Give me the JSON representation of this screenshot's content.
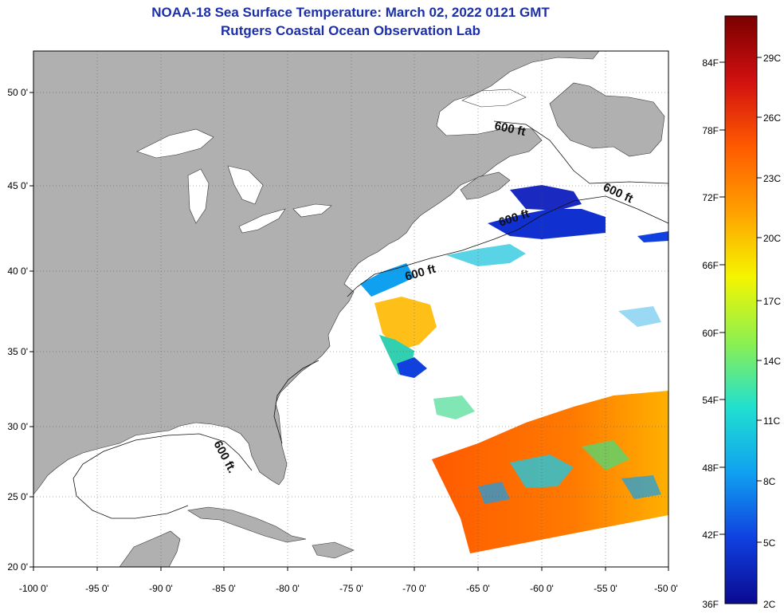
{
  "title": "NOAA-18 Sea Surface Temperature:  March 02, 2022 0121 GMT",
  "subtitle": "Rutgers Coastal Ocean Observation Lab",
  "map": {
    "lon_range": [
      -100,
      -50
    ],
    "lat_range": [
      20,
      52.5
    ],
    "lon_ticks": [
      "-100 0'",
      "-95 0'",
      "-90 0'",
      "-85 0'",
      "-80 0'",
      "-75 0'",
      "-70 0'",
      "-65 0'",
      "-60 0'",
      "-55 0'",
      "-50 0'"
    ],
    "lat_ticks": [
      "20 0'",
      "25 0'",
      "30 0'",
      "35 0'",
      "40 0'",
      "45 0'",
      "50 0'"
    ],
    "contour_labels": [
      "600 ft",
      "600 ft",
      "600 ft",
      "600 ft",
      "600 ft."
    ],
    "land_color": "#b0b0b0",
    "grid": "dotted"
  },
  "colorbar": {
    "fahrenheit_labels": [
      "84F",
      "78F",
      "72F",
      "66F",
      "60F",
      "54F",
      "48F",
      "42F",
      "36F"
    ],
    "celsius_labels": [
      "29C",
      "26C",
      "23C",
      "20C",
      "17C",
      "14C",
      "11C",
      "8C",
      "5C",
      "2C"
    ],
    "colors": [
      "#7a0000",
      "#d01010",
      "#ff5a00",
      "#ffa000",
      "#f5f500",
      "#8cf050",
      "#20e0d0",
      "#10a0f0",
      "#1040e0",
      "#0a0a90"
    ]
  }
}
